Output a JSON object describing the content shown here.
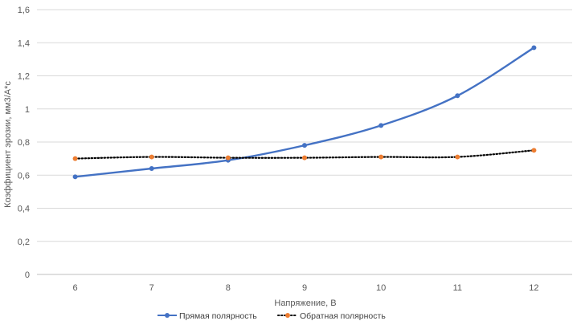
{
  "chart_data": {
    "type": "line",
    "title": "",
    "xlabel": "Напряжение, В",
    "ylabel": "Коэффициент эрозии, мм3/А*с",
    "x": [
      6,
      7,
      8,
      9,
      10,
      11,
      12
    ],
    "x_tick_labels": [
      "6",
      "7",
      "8",
      "9",
      "10",
      "11",
      "12"
    ],
    "ylim": [
      0,
      1.6
    ],
    "y_ticks": [
      0,
      0.2,
      0.4,
      0.6,
      0.8,
      1.0,
      1.2,
      1.4,
      1.6
    ],
    "y_tick_labels": [
      "0",
      "0,2",
      "0,4",
      "0,6",
      "0,8",
      "1",
      "1,2",
      "1,4",
      "1,6"
    ],
    "grid": "horizontal",
    "legend_position": "bottom",
    "series": [
      {
        "name": "Прямая полярность",
        "values": [
          0.59,
          0.64,
          0.69,
          0.78,
          0.9,
          1.08,
          1.37
        ],
        "color": "#4472C4",
        "line_style": "solid",
        "marker": "circle"
      },
      {
        "name": "Обратная полярность",
        "values": [
          0.7,
          0.71,
          0.705,
          0.705,
          0.71,
          0.71,
          0.75
        ],
        "color": "#ED7D31",
        "line_color": "#000000",
        "line_style": "dotted",
        "marker": "circle"
      }
    ]
  }
}
